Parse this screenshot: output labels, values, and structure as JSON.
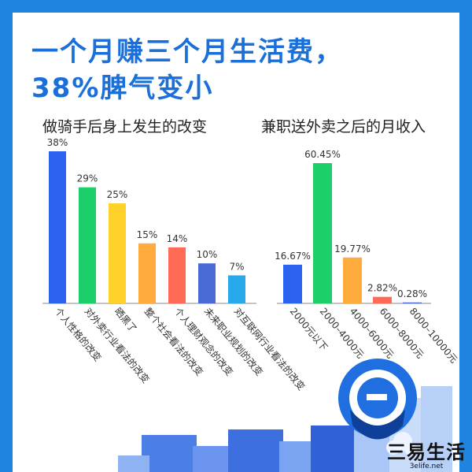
{
  "header": {
    "title_line1": "一个月赚三个月生活费，",
    "title_line2": "38%脾气变小"
  },
  "colors": {
    "frame": "#1f84e0",
    "title": "#1a6fd8",
    "blue": "#2b63f0",
    "green": "#1dcf6b",
    "yellow": "#ffd12a",
    "orange": "#ffab3d",
    "red": "#ff6b55",
    "indigo": "#4a6bd6",
    "skyblue": "#27a9ec"
  },
  "watermark": {
    "brand": "三易生活",
    "url": "3elife.net"
  },
  "chart_data": [
    {
      "type": "bar",
      "title": "做骑手后身上发生的改变",
      "categories": [
        "个人性格的改变",
        "对外卖行业看法的改变",
        "晒黑了",
        "整个社会看法的改变",
        "个人理财观念的改变",
        "未来职业规划的改变",
        "对互联网行业看法的改变"
      ],
      "values": [
        38,
        29,
        25,
        15,
        14,
        10,
        7
      ],
      "value_labels": [
        "38%",
        "29%",
        "25%",
        "15%",
        "14%",
        "10%",
        "7%"
      ],
      "colors": [
        "#2b63f0",
        "#1dcf6b",
        "#ffd12a",
        "#ffab3d",
        "#ff6b55",
        "#4a6bd6",
        "#27a9ec"
      ]
    },
    {
      "type": "bar",
      "title": "兼职送外卖之后的月收入",
      "categories": [
        "2000元以下",
        "2000–4000元",
        "4000–6000元",
        "6000–8000元",
        "8000–10000元"
      ],
      "values": [
        16.67,
        60.45,
        19.77,
        2.82,
        0.28
      ],
      "value_labels": [
        "16.67%",
        "60.45%",
        "19.77%",
        "2.82%",
        "0.28%"
      ],
      "colors": [
        "#2b63f0",
        "#1dcf6b",
        "#ffab3d",
        "#ff6b55",
        "#4a6bd6"
      ]
    }
  ]
}
